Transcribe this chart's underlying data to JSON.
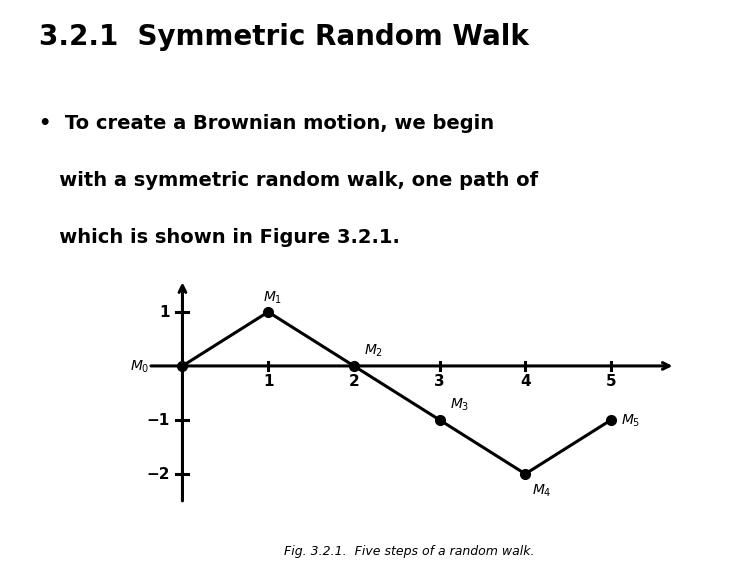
{
  "title": "3.2.1  Symmetric Random Walk",
  "bullet_text_line1": "•  To create a Brownian motion, we begin",
  "bullet_text_line2": "   with a symmetric random walk, one path of",
  "bullet_text_line3": "   which is shown in Figure 3.2.1.",
  "x_data": [
    0,
    1,
    2,
    3,
    4,
    5
  ],
  "y_data": [
    0,
    1,
    0,
    -1,
    -2,
    -1
  ],
  "label_texts": [
    "$M_0$",
    "$M_1$",
    "$M_2$",
    "$M_3$",
    "$M_4$",
    "$M_5$"
  ],
  "label_offsets_x": [
    -0.38,
    0.05,
    0.12,
    0.12,
    0.08,
    0.12
  ],
  "label_offsets_y": [
    0.0,
    0.12,
    0.13,
    0.13,
    -0.15,
    0.0
  ],
  "label_ha": [
    "right",
    "center",
    "left",
    "left",
    "left",
    "left"
  ],
  "label_va": [
    "center",
    "bottom",
    "bottom",
    "bottom",
    "top",
    "center"
  ],
  "x_ticks": [
    1,
    2,
    3,
    4,
    5
  ],
  "y_ticks": [
    -2,
    -1,
    1
  ],
  "y_tick_labels": [
    "−2",
    "−1",
    "1"
  ],
  "x_lim": [
    -0.5,
    5.8
  ],
  "y_lim": [
    -2.7,
    1.7
  ],
  "caption": "Fig. 3.2.1.  Five steps of a random walk.",
  "bg_color": "#ffffff",
  "line_color": "#000000",
  "point_color": "#000000",
  "axis_color": "#000000",
  "text_color": "#000000",
  "title_fontsize": 20,
  "bullet_fontsize": 14,
  "tick_fontsize": 11,
  "label_fontsize": 10,
  "caption_fontsize": 9,
  "line_width": 2.2,
  "point_size": 7,
  "tick_length_x": 0.07,
  "tick_length_y": 0.07
}
